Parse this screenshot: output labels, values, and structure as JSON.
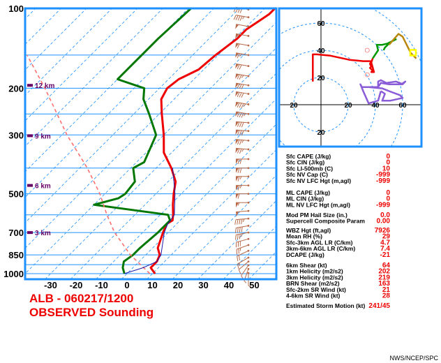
{
  "colors": {
    "frame": "#1e90ff",
    "isotherm": "#1e90ff",
    "temperature": "#ee0000",
    "dewpoint": "#007700",
    "parcel": "#ff7070",
    "virtual_temp": "#1a1aa8",
    "wind_barb": "#b86a4a",
    "hodo_low": "#ee0000",
    "hodo_mid": "#009900",
    "hodo_high": "#b8860b",
    "hodo_upper": "#8a5cd8",
    "storm_motion": "#ffff00",
    "height_marker": "#660066",
    "value": "#ee0000",
    "title": "#ee0000"
  },
  "title": {
    "line1": "ALB - 060217/1200",
    "line2": "OBSERVED Sounding"
  },
  "footer": "NWS/NCEP/SPC",
  "chart_data": [
    {
      "type": "line",
      "kind": "skew-T log-p",
      "xlabel": "",
      "ylabel": "",
      "x_ticks": [
        "-30",
        "-20",
        "-10",
        "0",
        "10",
        "20",
        "30",
        "40",
        "50"
      ],
      "y_ticks": [
        "100",
        "200",
        "300",
        "500",
        "700",
        "850",
        "1000"
      ],
      "pressure_lines": [
        100,
        150,
        200,
        250,
        300,
        400,
        500,
        600,
        700,
        850,
        925,
        1000
      ],
      "height_labels": [
        {
          "text": "12 km",
          "p": 195
        },
        {
          "text": "9 km",
          "p": 302
        },
        {
          "text": "6 km",
          "p": 465
        },
        {
          "text": "3 km",
          "p": 700
        }
      ],
      "series": [
        {
          "key": "temperature",
          "points": [
            [
              1000,
              11
            ],
            [
              950,
              7
            ],
            [
              900,
              7
            ],
            [
              850,
              5.5
            ],
            [
              800,
              2
            ],
            [
              700,
              -2
            ],
            [
              650,
              -4
            ],
            [
              630,
              -3
            ],
            [
              600,
              -5
            ],
            [
              550,
              -9
            ],
            [
              500,
              -13
            ],
            [
              450,
              -17
            ],
            [
              400,
              -24
            ],
            [
              350,
              -33
            ],
            [
              300,
              -40
            ],
            [
              250,
              -49
            ],
            [
              220,
              -55
            ],
            [
              200,
              -57
            ],
            [
              185,
              -56
            ],
            [
              170,
              -52
            ],
            [
              150,
              -51
            ],
            [
              130,
              -49
            ],
            [
              120,
              -49
            ],
            [
              110,
              -47
            ],
            [
              105,
              -46
            ],
            [
              100,
              -46
            ]
          ]
        },
        {
          "key": "dewpoint",
          "points": [
            [
              1000,
              -1
            ],
            [
              950,
              -4
            ],
            [
              900,
              -6
            ],
            [
              850,
              -5
            ],
            [
              800,
              -5
            ],
            [
              700,
              -4
            ],
            [
              650,
              -4
            ],
            [
              630,
              -4
            ],
            [
              600,
              -7
            ],
            [
              550,
              -40
            ],
            [
              520,
              -33
            ],
            [
              500,
              -32
            ],
            [
              450,
              -33
            ],
            [
              400,
              -39
            ],
            [
              380,
              -37
            ],
            [
              300,
              -43
            ],
            [
              250,
              -54
            ],
            [
              220,
              -62
            ],
            [
              200,
              -66
            ],
            [
              185,
              -80
            ],
            [
              160,
              -80
            ],
            [
              150,
              -80
            ],
            [
              130,
              -80
            ],
            [
              100,
              -79
            ]
          ]
        },
        {
          "key": "parcel",
          "points": [
            [
              1000,
              9
            ],
            [
              850,
              -6
            ],
            [
              700,
              -21
            ],
            [
              600,
              -31
            ],
            [
              500,
              -42
            ],
            [
              400,
              -57
            ],
            [
              300,
              -78
            ],
            [
              200,
              -105
            ],
            [
              150,
              -125
            ]
          ]
        },
        {
          "key": "virtual_temp",
          "points": [
            [
              1000,
              -1
            ],
            [
              950,
              4
            ],
            [
              900,
              7
            ],
            [
              850,
              6
            ],
            [
              700,
              -1.5
            ],
            [
              650,
              -3.5
            ],
            [
              600,
              -4.5
            ],
            [
              500,
              -12.5
            ],
            [
              400,
              -23.5
            ]
          ]
        }
      ],
      "wind_barbs": [
        {
          "p": 995,
          "dir": 180,
          "spd": 5
        },
        {
          "p": 960,
          "dir": 200,
          "spd": 5
        },
        {
          "p": 930,
          "dir": 215,
          "spd": 5
        },
        {
          "p": 900,
          "dir": 230,
          "spd": 10
        },
        {
          "p": 870,
          "dir": 240,
          "spd": 15
        },
        {
          "p": 820,
          "dir": 245,
          "spd": 20
        },
        {
          "p": 780,
          "dir": 250,
          "spd": 25
        },
        {
          "p": 740,
          "dir": 255,
          "spd": 30
        },
        {
          "p": 700,
          "dir": 260,
          "spd": 35
        },
        {
          "p": 660,
          "dir": 260,
          "spd": 40
        },
        {
          "p": 620,
          "dir": 265,
          "spd": 45
        },
        {
          "p": 580,
          "dir": 265,
          "spd": 50
        },
        {
          "p": 540,
          "dir": 270,
          "spd": 55
        },
        {
          "p": 500,
          "dir": 270,
          "spd": 60
        },
        {
          "p": 465,
          "dir": 270,
          "spd": 65
        },
        {
          "p": 430,
          "dir": 270,
          "spd": 65
        },
        {
          "p": 400,
          "dir": 270,
          "spd": 70
        },
        {
          "p": 370,
          "dir": 270,
          "spd": 70
        },
        {
          "p": 340,
          "dir": 275,
          "spd": 75
        },
        {
          "p": 315,
          "dir": 275,
          "spd": 75
        },
        {
          "p": 290,
          "dir": 275,
          "spd": 80
        },
        {
          "p": 270,
          "dir": 275,
          "spd": 80
        },
        {
          "p": 250,
          "dir": 280,
          "spd": 85
        },
        {
          "p": 230,
          "dir": 280,
          "spd": 85
        },
        {
          "p": 210,
          "dir": 280,
          "spd": 80
        },
        {
          "p": 195,
          "dir": 280,
          "spd": 80
        },
        {
          "p": 180,
          "dir": 280,
          "spd": 75
        },
        {
          "p": 165,
          "dir": 280,
          "spd": 70
        },
        {
          "p": 150,
          "dir": 280,
          "spd": 65
        },
        {
          "p": 138,
          "dir": 280,
          "spd": 60
        },
        {
          "p": 127,
          "dir": 280,
          "spd": 55
        },
        {
          "p": 117,
          "dir": 280,
          "spd": 50
        },
        {
          "p": 108,
          "dir": 280,
          "spd": 45
        },
        {
          "p": 101,
          "dir": 280,
          "spd": 40
        }
      ]
    },
    {
      "type": "line",
      "kind": "hodograph",
      "ring_labels": [
        {
          "text": "60",
          "u": 0,
          "v": 60
        },
        {
          "text": "40",
          "u": 0,
          "v": 40
        },
        {
          "text": "20",
          "u": 0,
          "v": 20
        },
        {
          "text": "20",
          "u": -20,
          "v": 0
        },
        {
          "text": "20",
          "u": 20,
          "v": 0
        },
        {
          "text": "40",
          "u": 40,
          "v": 0
        },
        {
          "text": "60",
          "u": 60,
          "v": 0
        },
        {
          "text": "20",
          "u": 0,
          "v": -20
        }
      ],
      "series": [
        {
          "key": "hodo_upper",
          "points": [
            [
              44,
              10
            ],
            [
              42,
              3
            ],
            [
              35,
              1
            ],
            [
              31,
              10
            ],
            [
              29,
              15
            ],
            [
              30,
              13
            ],
            [
              42,
              13
            ],
            [
              42,
              17
            ],
            [
              44,
              18
            ],
            [
              48,
              16
            ],
            [
              55,
              17
            ],
            [
              58,
              16
            ],
            [
              60,
              15
            ],
            [
              62,
              17
            ],
            [
              62,
              17
            ],
            [
              59,
              15
            ],
            [
              50,
              15
            ],
            [
              44,
              16
            ],
            [
              42,
              13
            ],
            [
              35,
              13
            ],
            [
              45,
              12
            ],
            [
              50,
              10
            ],
            [
              58,
              7
            ],
            [
              60,
              5
            ],
            [
              51,
              3
            ],
            [
              45,
              3
            ],
            [
              47,
              8
            ],
            [
              44,
              10
            ]
          ]
        },
        {
          "key": "hodo_low",
          "points": [
            [
              -6,
              17
            ],
            [
              -6,
              26
            ],
            [
              -6,
              37
            ],
            [
              -3,
              37
            ],
            [
              7,
              36
            ],
            [
              21,
              33
            ],
            [
              31,
              32
            ],
            [
              37,
              32
            ],
            [
              36,
              30
            ],
            [
              37,
              28
            ],
            [
              36,
              27
            ],
            [
              38,
              25
            ],
            [
              37,
              24
            ],
            [
              39,
              24
            ],
            [
              37,
              31
            ],
            [
              38,
              34
            ]
          ]
        },
        {
          "key": "hodo_mid",
          "points": [
            [
              38,
              34
            ],
            [
              42,
              40
            ],
            [
              41,
              44
            ],
            [
              43,
              44
            ],
            [
              45,
              44
            ],
            [
              49,
              45
            ],
            [
              55,
              48
            ],
            [
              51,
              46
            ],
            [
              47,
              42
            ],
            [
              46,
              40
            ]
          ]
        },
        {
          "key": "hodo_high",
          "points": [
            [
              50,
              44
            ],
            [
              57,
              52
            ],
            [
              60,
              50
            ],
            [
              66,
              38
            ],
            [
              70,
              34
            ]
          ]
        }
      ],
      "storm_motion": {
        "u": 41,
        "v": 9
      },
      "bunkers_markers": [
        {
          "u": 34,
          "v": 22
        },
        {
          "u": 34,
          "v": 40
        }
      ]
    }
  ],
  "params": [
    {
      "group": "sfc",
      "rows": [
        {
          "label": "Sfc CAPE (J/kg)",
          "value": "0"
        },
        {
          "label": "Sfc CIN (J/kg)",
          "value": "0"
        },
        {
          "label": "Sfc LI-500mb (C)",
          "value": "10"
        },
        {
          "label": "Sfc NV Cap (C)",
          "value": "-999"
        },
        {
          "label": "Sfc NV LFC Hgt (m,agl)",
          "value": "-999"
        }
      ]
    },
    {
      "group": "ml",
      "rows": [
        {
          "label": "ML CAPE (J/kg)",
          "value": "0"
        },
        {
          "label": "ML CIN (J/kg)",
          "value": "0"
        },
        {
          "label": "ML NV LFC Hgt (m,agl)",
          "value": "-999"
        }
      ]
    },
    {
      "group": "hail",
      "rows": [
        {
          "label": "Mod PM Hail Size (in.)",
          "value": "0.0"
        },
        {
          "label": "Supercell Composite Param",
          "value": "0.00"
        }
      ]
    },
    {
      "group": "thermo",
      "rows": [
        {
          "label": "WBZ Hgt (ft,agl)",
          "value": "7926"
        },
        {
          "label": "Mean RH (%)",
          "value": "29"
        },
        {
          "label": "Sfc-3km AGL LR (C/km)",
          "value": "4.7"
        },
        {
          "label": "3km-6km AGL LR (C/km)",
          "value": "7.4"
        },
        {
          "label": "DCAPE (J/kg)",
          "value": "-21"
        }
      ]
    },
    {
      "group": "kin",
      "rows": [
        {
          "label": "6km Shear (kt)",
          "value": "64"
        },
        {
          "label": "1km Helicity (m2/s2)",
          "value": "202"
        },
        {
          "label": "3km Helicity (m2/s2)",
          "value": "219"
        },
        {
          "label": "BRN Shear (m2/s2)",
          "value": "163"
        },
        {
          "label": "Sfc-2km SR Wind (kt)",
          "value": "21"
        },
        {
          "label": "4-6km SR Wind (kt)",
          "value": "28"
        }
      ]
    },
    {
      "group": "motion",
      "rows": [
        {
          "label": "Estimated Storm Motion (kt)",
          "value": "241/45"
        }
      ]
    }
  ]
}
